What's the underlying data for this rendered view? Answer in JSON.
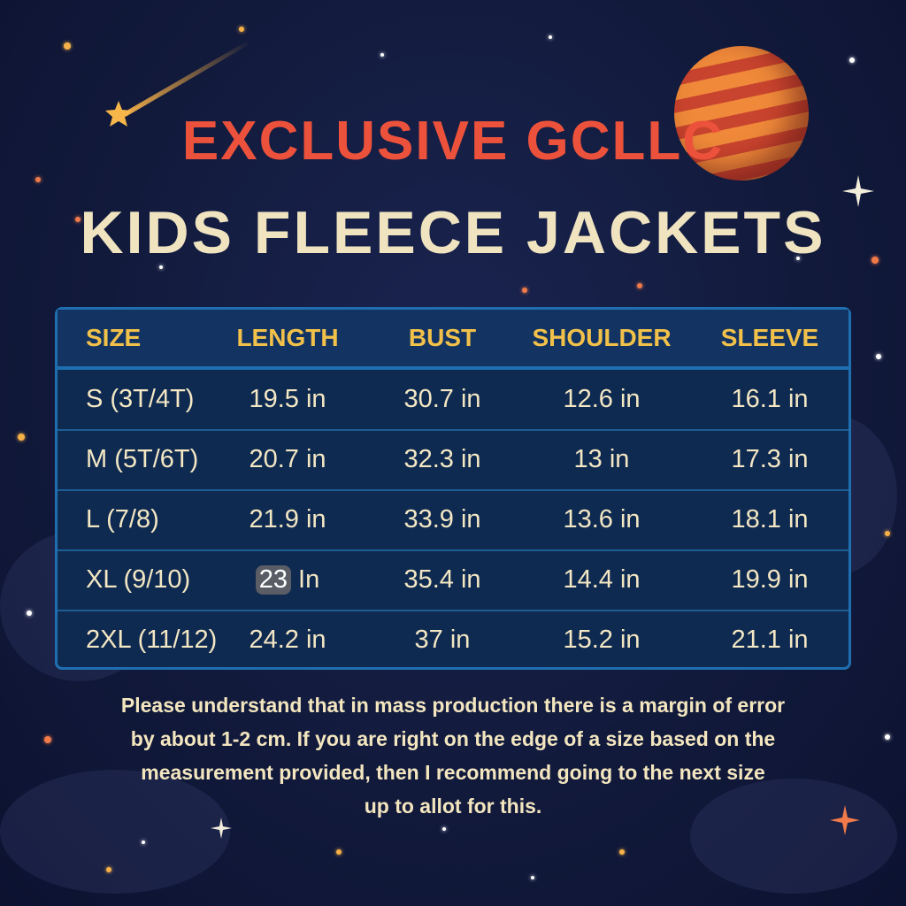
{
  "header": {
    "brand": "EXCLUSIVE GCLLC",
    "title": "KIDS FLEECE JACKETS"
  },
  "table": {
    "columns": [
      "SIZE",
      "LENGTH",
      "BUST",
      "SHOULDER",
      "SLEEVE"
    ],
    "rows": [
      [
        "S (3T/4T)",
        "19.5 in",
        "30.7 in",
        "12.6 in",
        "16.1 in"
      ],
      [
        "M (5T/6T)",
        "20.7 in",
        "32.3 in",
        "13 in",
        "17.3 in"
      ],
      [
        "L (7/8)",
        "21.9 in",
        "33.9 in",
        "13.6 in",
        "18.1 in"
      ],
      [
        "XL (9/10)",
        "",
        "35.4 in",
        "14.4 in",
        "19.9 in"
      ],
      [
        "2XL (11/12)",
        "24.2 in",
        "37 in",
        "15.2 in",
        "21.1 in"
      ]
    ],
    "xl_length": {
      "number": "23",
      "unit": "In"
    }
  },
  "note": {
    "lines": [
      "Please understand that in mass production there is a margin of error",
      "by about 1-2 cm. If you are right on the edge of a size based on the",
      "measurement provided, then I recommend going to the next size",
      "up to allot for this."
    ]
  },
  "colors": {
    "brand": "#ec523b",
    "title": "#efe3c0",
    "header_text": "#f2c14a",
    "table_border": "#1f6fb0",
    "background": "#121a3c"
  },
  "decorations": [
    "planet-icon",
    "shooting-star-icon",
    "sparkle-star-icon"
  ]
}
